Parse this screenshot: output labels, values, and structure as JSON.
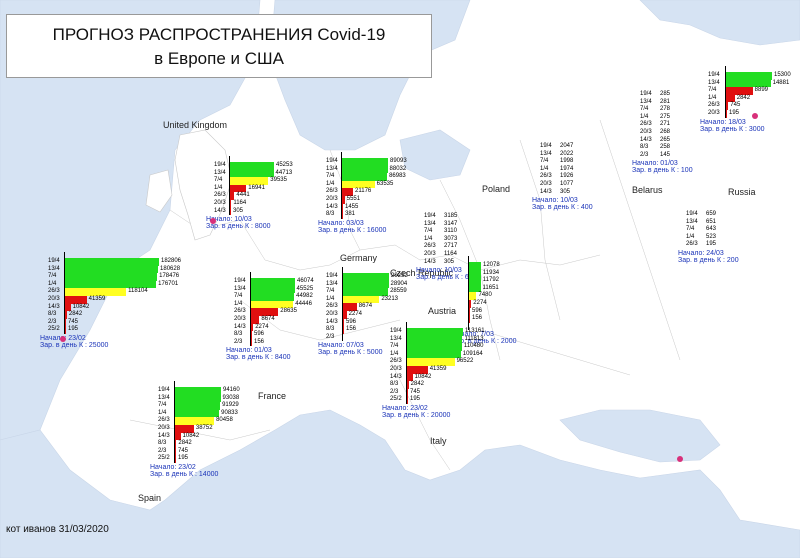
{
  "title": {
    "line1": "ПРОГНОЗ РАСПРОСТРАНЕНИЯ Covid-19",
    "line2": "в Европе и США"
  },
  "footer": "кот иванов 31/03/2020",
  "countries": [
    {
      "name": "United Kingdom"
    },
    {
      "name": "Poland"
    },
    {
      "name": "Belarus"
    },
    {
      "name": "Russia"
    },
    {
      "name": "Germany"
    },
    {
      "name": "Czech Republic"
    },
    {
      "name": "Austria"
    },
    {
      "name": "France"
    },
    {
      "name": "Spain"
    },
    {
      "name": "Italy"
    }
  ],
  "colors": {
    "forecast": "#22dd22",
    "transition": "#ffff22",
    "actual": "#e01010",
    "info_text": "#1a33b8",
    "marker": "#d8307a"
  },
  "blocks": [
    {
      "id": "uk",
      "dates": [
        "19/4",
        "13/4",
        "7/4",
        "1/4",
        "26/3",
        "20/3",
        "14/3"
      ],
      "values": [
        "45253",
        "44713",
        "39535",
        "16941",
        "4441",
        "1164",
        "305"
      ],
      "fills": [
        1.0,
        0.99,
        0.87,
        0.37,
        0.1,
        0.03,
        0.01
      ],
      "kinds": [
        "g",
        "g",
        "y",
        "r",
        "r",
        "r",
        "r"
      ],
      "start": "Начало: 10/03",
      "rate": "Зар. в  день К : 8000"
    },
    {
      "id": "de",
      "dates": [
        "19/4",
        "13/4",
        "7/4",
        "1/4",
        "26/3",
        "20/3",
        "14/3",
        "8/3"
      ],
      "values": [
        "89093",
        "88032",
        "86983",
        "63535",
        "21176",
        "5551",
        "1455",
        "381"
      ],
      "fills": [
        1.0,
        0.99,
        0.98,
        0.71,
        0.24,
        0.06,
        0.02,
        0.005
      ],
      "kinds": [
        "g",
        "g",
        "g",
        "y",
        "r",
        "r",
        "r",
        "r"
      ],
      "start": "Начало: 03/03",
      "rate": "Зар. в  день К : 16000"
    },
    {
      "id": "pl",
      "dates": [
        "19/4",
        "13/4",
        "7/4",
        "1/4",
        "26/3",
        "20/3",
        "14/3"
      ],
      "values": [
        "2047",
        "2022",
        "1998",
        "1974",
        "1926",
        "1077",
        "305"
      ],
      "fills": [],
      "kinds": [],
      "start": "Начало: 10/03",
      "rate": "Зар. в  день К : 400"
    },
    {
      "id": "by",
      "dates": [
        "19/4",
        "13/4",
        "7/4",
        "1/4",
        "26/3",
        "20/3",
        "14/3",
        "8/3",
        "2/3"
      ],
      "values": [
        "285",
        "281",
        "278",
        "275",
        "271",
        "268",
        "265",
        "258",
        "145"
      ],
      "fills": [],
      "kinds": [],
      "start": "Начало: 01/03",
      "rate": "Зар. в  день К : 100"
    },
    {
      "id": "ru",
      "dates": [
        "19/4",
        "13/4",
        "7/4",
        "1/4",
        "26/3",
        "20/3"
      ],
      "values": [
        "15300",
        "14881",
        "8899",
        "2842",
        "745",
        "195"
      ],
      "fills": [
        1.0,
        0.97,
        0.58,
        0.19,
        0.05,
        0.01
      ],
      "kinds": [
        "g",
        "g",
        "r",
        "r",
        "r",
        "r"
      ],
      "start": "Начало: 18/03",
      "rate": "Зар. в  день К : 3000"
    },
    {
      "id": "ru2",
      "dates": [
        "19/4",
        "13/4",
        "7/4",
        "1/4",
        "26/3"
      ],
      "values": [
        "659",
        "651",
        "643",
        "523",
        "195"
      ],
      "fills": [],
      "kinds": [],
      "start": "Начало: 24/03",
      "rate": "Зар. в  день К : 200"
    },
    {
      "id": "es",
      "dates": [
        "19/4",
        "13/4",
        "7/4",
        "1/4",
        "26/3",
        "20/3",
        "14/3",
        "8/3",
        "2/3",
        "25/2"
      ],
      "values": [
        "182806",
        "180628",
        "178476",
        "176701",
        "118104",
        "41359",
        "10842",
        "2842",
        "745",
        "195"
      ],
      "fills": [
        1.0,
        0.99,
        0.98,
        0.97,
        0.65,
        0.23,
        0.06,
        0.02,
        0.005,
        0.001
      ],
      "kinds": [
        "g",
        "g",
        "g",
        "g",
        "y",
        "r",
        "r",
        "r",
        "r",
        "r"
      ],
      "start": "Начало: 23/02",
      "rate": "Зар. в  день К : 25000"
    },
    {
      "id": "fr1",
      "dates": [
        "19/4",
        "13/4",
        "7/4",
        "1/4",
        "26/3",
        "20/3",
        "14/3",
        "8/3",
        "2/3"
      ],
      "values": [
        "46074",
        "45525",
        "44982",
        "44446",
        "28635",
        "8674",
        "2274",
        "596",
        "156"
      ],
      "fills": [
        1.0,
        0.99,
        0.98,
        0.96,
        0.62,
        0.19,
        0.05,
        0.01,
        0.003
      ],
      "kinds": [
        "g",
        "g",
        "g",
        "y",
        "r",
        "r",
        "r",
        "r",
        "r"
      ],
      "start": "Начало: 01/03",
      "rate": "Зар. в  день К : 8400"
    },
    {
      "id": "de2",
      "dates": [
        "19/4",
        "13/4",
        "7/4",
        "1/4",
        "26/3",
        "20/3",
        "14/3",
        "8/3",
        "2/3"
      ],
      "values": [
        "29252",
        "28904",
        "28559",
        "23213",
        "8674",
        "2274",
        "596",
        "156",
        ""
      ],
      "fills": [
        1.0,
        0.99,
        0.98,
        0.79,
        0.3,
        0.08,
        0.02,
        0.005,
        0
      ],
      "kinds": [
        "g",
        "g",
        "g",
        "y",
        "r",
        "r",
        "r",
        "r",
        "r"
      ],
      "start": "Начало: 07/03",
      "rate": "Зар. в  день К : 5000"
    },
    {
      "id": "cz",
      "dates": [
        "19/4",
        "13/4",
        "7/4",
        "1/4",
        "26/3",
        "20/3",
        "14/3"
      ],
      "values": [
        "3185",
        "3147",
        "3110",
        "3073",
        "2717",
        "1164",
        "305"
      ],
      "fills": [],
      "kinds": [],
      "start": "Начало: 10/03",
      "rate": "Зар. в  день К : 600"
    },
    {
      "id": "at",
      "dates": [
        "",
        "",
        "",
        "",
        "",
        "",
        "",
        "",
        ""
      ],
      "values": [
        "12078",
        "11934",
        "11792",
        "11651",
        "7480",
        "2274",
        "596",
        "156",
        ""
      ],
      "fills": [
        1.0,
        0.99,
        0.98,
        0.96,
        0.62,
        0.19,
        0.05,
        0.01,
        0
      ],
      "kinds": [
        "g",
        "g",
        "g",
        "g",
        "y",
        "r",
        "r",
        "r",
        "r"
      ],
      "start": "Начало: 7/03",
      "rate": "Зар. в  день К : 2000"
    },
    {
      "id": "fr",
      "dates": [
        "19/4",
        "13/4",
        "7/4",
        "1/4",
        "26/3",
        "20/3",
        "14/3",
        "8/3",
        "2/3",
        "25/2"
      ],
      "values": [
        "94160",
        "93038",
        "91929",
        "90833",
        "80458",
        "38752",
        "10842",
        "2842",
        "745",
        "195"
      ],
      "fills": [
        1.0,
        0.99,
        0.98,
        0.96,
        0.85,
        0.41,
        0.12,
        0.03,
        0.008,
        0.002
      ],
      "kinds": [
        "g",
        "g",
        "g",
        "g",
        "y",
        "r",
        "r",
        "r",
        "r",
        "r"
      ],
      "start": "Начало: 23/02",
      "rate": "Зар. в  день К : 14000"
    },
    {
      "id": "it",
      "dates": [
        "19/4",
        "13/4",
        "7/4",
        "1/4",
        "26/3",
        "20/3",
        "14/3",
        "8/3",
        "2/3",
        "25/2"
      ],
      "values": [
        "113161",
        "111813",
        "110480",
        "109164",
        "96522",
        "41359",
        "10842",
        "2842",
        "745",
        "195"
      ],
      "fills": [
        1.0,
        0.99,
        0.98,
        0.96,
        0.85,
        0.37,
        0.1,
        0.03,
        0.007,
        0.002
      ],
      "kinds": [
        "g",
        "g",
        "g",
        "g",
        "y",
        "r",
        "r",
        "r",
        "r",
        "r"
      ],
      "start": "Начало: 23/02",
      "rate": "Зар. в  день К : 20000"
    }
  ]
}
